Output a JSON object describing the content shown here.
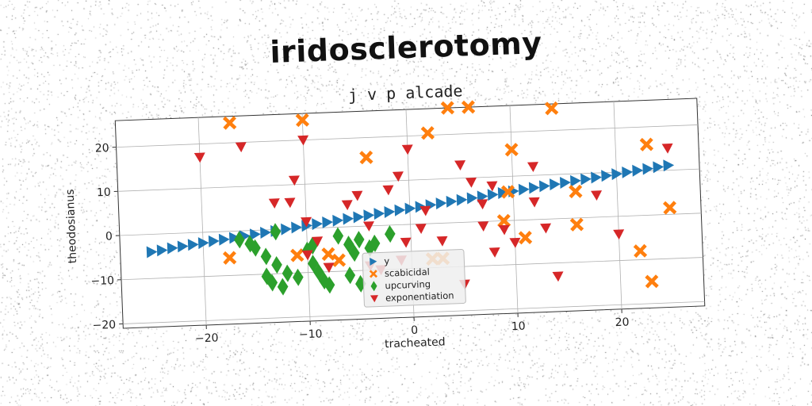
{
  "suptitle": "iridosclerotomy",
  "chart_data": {
    "type": "scatter",
    "title": "j v p alcade",
    "xlabel": "tracheated",
    "ylabel": "theodosianus",
    "xlim": [
      -28,
      28
    ],
    "ylim": [
      -21,
      26
    ],
    "xticks": [
      -20,
      -10,
      0,
      10,
      20
    ],
    "yticks": [
      -20,
      -10,
      0,
      10,
      20
    ],
    "xtick_labels": [
      "−20",
      "−10",
      "0",
      "10",
      "20"
    ],
    "ytick_labels": [
      "−20",
      "−10",
      "0",
      "10",
      "20"
    ],
    "grid": true,
    "legend_position": "lower-center",
    "series": [
      {
        "name": "y",
        "marker": "triangle-right",
        "color": "#1f77b4",
        "points": [
          [
            -25,
            -4.0
          ],
          [
            -24,
            -3.7
          ],
          [
            -23,
            -3.3
          ],
          [
            -22,
            -3.0
          ],
          [
            -21,
            -2.7
          ],
          [
            -20,
            -2.4
          ],
          [
            -19,
            -2.1
          ],
          [
            -18,
            -1.8
          ],
          [
            -17,
            -1.5
          ],
          [
            -16,
            -1.2
          ],
          [
            -15,
            -0.9
          ],
          [
            -14,
            -0.6
          ],
          [
            -13,
            -0.3
          ],
          [
            -12,
            0.0
          ],
          [
            -11,
            0.3
          ],
          [
            -10,
            0.6
          ],
          [
            -9,
            0.9
          ],
          [
            -8,
            1.2
          ],
          [
            -7,
            1.5
          ],
          [
            -6,
            1.8
          ],
          [
            -5,
            2.1
          ],
          [
            -4,
            2.4
          ],
          [
            -3,
            2.7
          ],
          [
            -2,
            3.0
          ],
          [
            -1,
            3.3
          ],
          [
            0,
            3.6
          ],
          [
            1,
            3.9
          ],
          [
            2,
            4.2
          ],
          [
            3,
            4.5
          ],
          [
            4,
            4.8
          ],
          [
            5,
            5.1
          ],
          [
            6,
            5.4
          ],
          [
            7,
            5.7
          ],
          [
            8,
            6.0
          ],
          [
            9,
            6.3
          ],
          [
            10,
            6.6
          ],
          [
            11,
            6.9
          ],
          [
            12,
            7.2
          ],
          [
            13,
            7.5
          ],
          [
            14,
            7.8
          ],
          [
            15,
            8.1
          ],
          [
            16,
            8.4
          ],
          [
            17,
            8.7
          ],
          [
            18,
            9.0
          ],
          [
            19,
            9.3
          ],
          [
            20,
            9.6
          ],
          [
            21,
            9.9
          ],
          [
            22,
            10.2
          ],
          [
            23,
            10.5
          ],
          [
            24,
            10.8
          ],
          [
            25,
            11.1
          ]
        ]
      },
      {
        "name": "scabicidal",
        "marker": "X",
        "color": "#ff7f0e",
        "points": [
          [
            -17,
            24.5
          ],
          [
            -10,
            24.5
          ],
          [
            4,
            26
          ],
          [
            6,
            26
          ],
          [
            14,
            25
          ],
          [
            2,
            20.5
          ],
          [
            -4,
            15.5
          ],
          [
            10,
            16
          ],
          [
            23,
            16
          ],
          [
            16,
            6
          ],
          [
            9.5,
            6.5
          ],
          [
            9,
            0
          ],
          [
            11,
            -4
          ],
          [
            16,
            -1.5
          ],
          [
            25,
            1.5
          ],
          [
            -17.5,
            -6
          ],
          [
            -11,
            -6
          ],
          [
            -8,
            -6
          ],
          [
            -7,
            -7.5
          ],
          [
            2,
            -8
          ],
          [
            3,
            -8
          ],
          [
            22,
            -8
          ],
          [
            23,
            -15
          ]
        ]
      },
      {
        "name": "upcurving",
        "marker": "diamond",
        "color": "#2ca02c",
        "points": [
          [
            -16.5,
            -2
          ],
          [
            -15.5,
            -3
          ],
          [
            -13,
            -0.5
          ],
          [
            -15,
            -4
          ],
          [
            -14,
            -6
          ],
          [
            -13,
            -8
          ],
          [
            -12,
            -10
          ],
          [
            -14,
            -10.5
          ],
          [
            -13.5,
            -12
          ],
          [
            -12.5,
            -13
          ],
          [
            -11,
            -11
          ],
          [
            -10,
            -5
          ],
          [
            -9.5,
            -8
          ],
          [
            -9,
            -10
          ],
          [
            -8.5,
            -12
          ],
          [
            -8,
            -13
          ],
          [
            -9.5,
            -4
          ],
          [
            -7,
            -2
          ],
          [
            -6,
            -4
          ],
          [
            -5,
            -3
          ],
          [
            -5.5,
            -6
          ],
          [
            -4,
            -5
          ],
          [
            -3.5,
            -4
          ],
          [
            -6,
            -11
          ],
          [
            -5,
            -13
          ],
          [
            -2,
            -2
          ]
        ]
      },
      {
        "name": "exponentiation",
        "marker": "triangle-down",
        "color": "#d62728",
        "points": [
          [
            -20,
            17
          ],
          [
            -16,
            19
          ],
          [
            -10,
            20
          ],
          [
            -11,
            11
          ],
          [
            -13,
            6
          ],
          [
            -11.5,
            6
          ],
          [
            -10,
            1.5
          ],
          [
            -6,
            5
          ],
          [
            -5,
            7
          ],
          [
            -2,
            8
          ],
          [
            -1,
            11
          ],
          [
            0,
            17
          ],
          [
            -4,
            0
          ],
          [
            -9,
            -3
          ],
          [
            -10,
            -6
          ],
          [
            -8,
            -9
          ],
          [
            -4,
            -9
          ],
          [
            -0.5,
            -4
          ],
          [
            -1,
            -8
          ],
          [
            1,
            -1
          ],
          [
            1.5,
            3
          ],
          [
            3,
            -4
          ],
          [
            5,
            13
          ],
          [
            6,
            9
          ],
          [
            7,
            4
          ],
          [
            8,
            8
          ],
          [
            7,
            -1
          ],
          [
            8,
            -7
          ],
          [
            9,
            -2
          ],
          [
            10,
            -5
          ],
          [
            12,
            12
          ],
          [
            12,
            4
          ],
          [
            13,
            -2
          ],
          [
            14,
            -13
          ],
          [
            18,
            5
          ],
          [
            20,
            -4
          ],
          [
            25,
            15
          ],
          [
            5,
            -14
          ],
          [
            -3,
            -10
          ]
        ]
      }
    ]
  }
}
